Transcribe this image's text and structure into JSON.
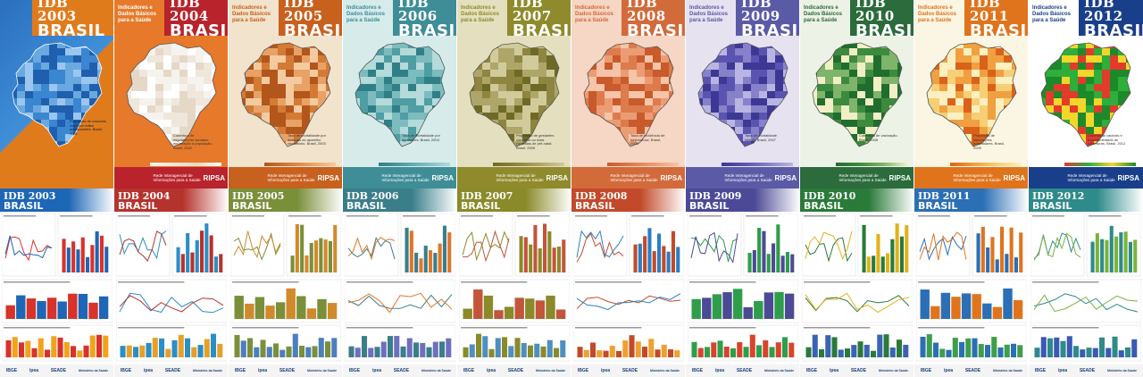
{
  "covers": [
    {
      "year": "2003",
      "idb": "IDB 2003",
      "country": "BRASIL",
      "accent": "#e07b1c",
      "bg": "#2b6fbf",
      "map_color": "#3a86d1",
      "map_scheme": "blue",
      "subtitle": "",
      "caption": "Proporção de nascidos vivos por mães adolescentes. Brasil, 2001",
      "footer": "",
      "ripsa": ""
    },
    {
      "year": "2004",
      "idb": "IDB 2004",
      "country": "BRASIL",
      "accent": "#b8232c",
      "bg": "#e6792a",
      "map_color": "#f6f3ee",
      "map_scheme": "white",
      "subtitle": "Indicadores e Dados Básicos para a Saúde",
      "caption": "Cobertura de esgotamento sanitário em relação à população. Brasil, 2002",
      "footer": "Rede Interagencial de Informações para a Saúde",
      "ripsa": "RIPSA"
    },
    {
      "year": "2005",
      "idb": "IDB 2005",
      "country": "BRASIL",
      "accent": "#c8601e",
      "bg": "#f1e3cc",
      "map_color": "#c86a2a",
      "map_scheme": "orange",
      "subtitle": "Indicadores e Dados Básicos para a Saúde",
      "caption": "Taxa de mortalidade por doenças do aparelho circulatório. Brasil, 2003",
      "footer": "Rede Interagencial de Informações para a Saúde",
      "ripsa": "RIPSA"
    },
    {
      "year": "2006",
      "idb": "IDB 2006",
      "country": "BRASIL",
      "accent": "#3e8d97",
      "bg": "#d7ebeb",
      "map_color": "#5aa4a8",
      "map_scheme": "teal",
      "subtitle": "Indicadores e Dados Básicos para a Saúde",
      "caption": "Taxa de mortalidade por agressões. Brasil, 2004",
      "footer": "Rede Interagencial de Informações para a Saúde",
      "ripsa": "RIPSA"
    },
    {
      "year": "2007",
      "idb": "IDB 2007",
      "country": "BRASIL",
      "accent": "#8f8a2c",
      "bg": "#e4e0bf",
      "map_color": "#8d8540",
      "map_scheme": "olive",
      "subtitle": "Indicadores e Dados Básicos para a Saúde",
      "caption": "Proporção de gestantes com sete ou mais consultas de pré-natal. Brasil, 2005",
      "footer": "Rede Interagencial de Informações para a Saúde",
      "ripsa": "RIPSA"
    },
    {
      "year": "2008",
      "idb": "IDB 2008",
      "country": "BRASIL",
      "accent": "#d26a3a",
      "bg": "#f6d6c4",
      "map_color": "#dd7b4c",
      "map_scheme": "salmon",
      "subtitle": "Indicadores e Dados Básicos para a Saúde",
      "caption": "Taxa de incidência de tuberculose. Brasil, 2006",
      "footer": "Rede Interagencial de Informações para a Saúde",
      "ripsa": "RIPSA"
    },
    {
      "year": "2009",
      "idb": "IDB 2009",
      "country": "BRASIL",
      "accent": "#5b5aa6",
      "bg": "#e6e2f0",
      "map_color": "#5b53b0",
      "map_scheme": "purple",
      "subtitle": "Indicadores e Dados Básicos para a Saúde",
      "caption": "Taxa de mortalidade infantil. Brasil, 2007",
      "footer": "Rede Interagencial de Informações para a Saúde",
      "ripsa": "RIPSA"
    },
    {
      "year": "2010",
      "idb": "IDB 2010",
      "country": "BRASIL",
      "accent": "#2b6b3c",
      "bg": "#edf2e6",
      "map_color": "#3c8a3e",
      "map_scheme": "green",
      "subtitle": "Indicadores e Dados Básicos para a Saúde",
      "caption": "Cobertura de vacinação. Brasil, 2008",
      "footer": "Rede Interagencial de Informações para a Saúde",
      "ripsa": "RIPSA"
    },
    {
      "year": "2011",
      "idb": "IDB 2011",
      "country": "BRASIL",
      "accent": "#e0741c",
      "bg": "#fbf6e4",
      "map_color": "#f0a040",
      "map_scheme": "yellow",
      "subtitle": "Indicadores e Dados Básicos para a Saúde",
      "caption": "Proporção de internações hospitalares. Brasil, 2009",
      "footer": "Rede Interagencial de Informações para a Saúde",
      "ripsa": "RIPSA"
    },
    {
      "year": "2012",
      "idb": "IDB 2012",
      "country": "BRASIL",
      "accent": "#1a3f8a",
      "bg": "#ffffff",
      "map_color": "#e23b2c",
      "map_scheme": "redgreen",
      "subtitle": "Indicadores e Dados Básicos para a Saúde",
      "caption": "Coberturas vacinais e homogeneidade de coberturas. Brasil, 2012",
      "footer": "Rede Interagencial de Informações para a Saúde",
      "ripsa": "RIPSA"
    }
  ],
  "posters": [
    {
      "idb": "IDB 2003",
      "country": "BRASIL",
      "header": "#1e66b6",
      "theme": "line-red"
    },
    {
      "idb": "IDB 2004",
      "country": "BRASIL",
      "header": "#b5332d",
      "theme": "bars-blue"
    },
    {
      "idb": "IDB 2005",
      "country": "BRASIL",
      "header": "#7a8f3a",
      "theme": "area"
    },
    {
      "idb": "IDB 2006",
      "country": "BRASIL",
      "header": "#3a7e8a",
      "theme": "bars-mixed"
    },
    {
      "idb": "IDB 2007",
      "country": "BRASIL",
      "header": "#8a8a2a",
      "theme": "lines"
    },
    {
      "idb": "IDB 2008",
      "country": "BRASIL",
      "header": "#c24a2a",
      "theme": "maps"
    },
    {
      "idb": "IDB 2009",
      "country": "BRASIL",
      "header": "#4c4a96",
      "theme": "lines-green"
    },
    {
      "idb": "IDB 2010",
      "country": "BRASIL",
      "header": "#2a7a3a",
      "theme": "bars-stacked"
    },
    {
      "idb": "IDB 2011",
      "country": "BRASIL",
      "header": "#2b6fb5",
      "theme": "pyramid"
    },
    {
      "idb": "IDB 2012",
      "country": "BRASIL",
      "header": "#2f8a8a",
      "theme": "histo"
    }
  ],
  "logos": {
    "ipea": "ipea",
    "ibge": "IBGE",
    "seade": "SEADE",
    "ministerio": "Ministério da Saúde"
  }
}
